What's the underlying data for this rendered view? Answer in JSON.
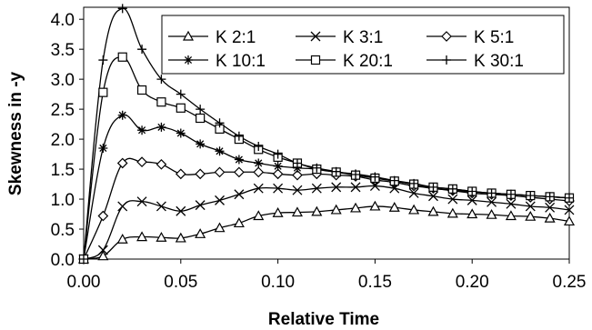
{
  "chart_data": {
    "type": "line",
    "title": "",
    "xlabel": "Relative Time",
    "ylabel": "Skewness in -y",
    "xlim": [
      0,
      0.25
    ],
    "ylim": [
      0,
      4.2
    ],
    "x_ticks": [
      "0.00",
      "0.05",
      "0.10",
      "0.15",
      "0.20",
      "0.25"
    ],
    "y_ticks": [
      "0.0",
      "0.5",
      "1.0",
      "1.5",
      "2.0",
      "2.5",
      "3.0",
      "3.5",
      "4.0"
    ],
    "grid": false,
    "legend_position": "top-right",
    "x": [
      0,
      0.01,
      0.02,
      0.03,
      0.04,
      0.05,
      0.06,
      0.07,
      0.08,
      0.09,
      0.1,
      0.11,
      0.12,
      0.13,
      0.14,
      0.15,
      0.16,
      0.17,
      0.18,
      0.19,
      0.2,
      0.21,
      0.22,
      0.23,
      0.24,
      0.25
    ],
    "series": [
      {
        "name": "K 2:1",
        "marker": "triangle",
        "values": [
          0.0,
          0.05,
          0.33,
          0.37,
          0.36,
          0.35,
          0.42,
          0.52,
          0.6,
          0.72,
          0.77,
          0.78,
          0.79,
          0.82,
          0.85,
          0.88,
          0.86,
          0.82,
          0.79,
          0.76,
          0.75,
          0.74,
          0.72,
          0.71,
          0.68,
          0.63
        ]
      },
      {
        "name": "K 3:1",
        "marker": "x",
        "values": [
          0.0,
          0.15,
          0.88,
          0.96,
          0.88,
          0.8,
          0.9,
          0.98,
          1.08,
          1.18,
          1.18,
          1.15,
          1.18,
          1.2,
          1.2,
          1.22,
          1.18,
          1.1,
          1.05,
          1.0,
          0.98,
          0.95,
          0.92,
          0.88,
          0.86,
          0.82
        ]
      },
      {
        "name": "K 5:1",
        "marker": "diamond",
        "values": [
          0.0,
          0.72,
          1.6,
          1.62,
          1.58,
          1.42,
          1.42,
          1.45,
          1.45,
          1.45,
          1.42,
          1.4,
          1.42,
          1.4,
          1.38,
          1.32,
          1.28,
          1.22,
          1.18,
          1.14,
          1.1,
          1.08,
          1.06,
          1.03,
          1.0,
          0.97
        ]
      },
      {
        "name": "K 10:1",
        "marker": "asterisk",
        "values": [
          0.0,
          1.85,
          2.4,
          2.15,
          2.2,
          2.1,
          1.92,
          1.8,
          1.66,
          1.6,
          1.55,
          1.52,
          1.5,
          1.45,
          1.42,
          1.37,
          1.3,
          1.25,
          1.18,
          1.15,
          1.12,
          1.1,
          1.08,
          1.06,
          1.04,
          1.02
        ]
      },
      {
        "name": "K 20:1",
        "marker": "square",
        "values": [
          0.0,
          2.78,
          3.37,
          2.82,
          2.62,
          2.52,
          2.35,
          2.17,
          2.0,
          1.83,
          1.7,
          1.6,
          1.5,
          1.45,
          1.4,
          1.35,
          1.3,
          1.25,
          1.2,
          1.17,
          1.13,
          1.1,
          1.08,
          1.06,
          1.04,
          1.02
        ]
      },
      {
        "name": "K 30:1",
        "marker": "plus",
        "values": [
          0.0,
          3.32,
          4.18,
          3.5,
          3.0,
          2.75,
          2.5,
          2.27,
          2.05,
          1.88,
          1.75,
          1.6,
          1.52,
          1.46,
          1.41,
          1.37,
          1.31,
          1.26,
          1.2,
          1.17,
          1.13,
          1.1,
          1.08,
          1.06,
          1.04,
          1.02
        ]
      }
    ]
  }
}
